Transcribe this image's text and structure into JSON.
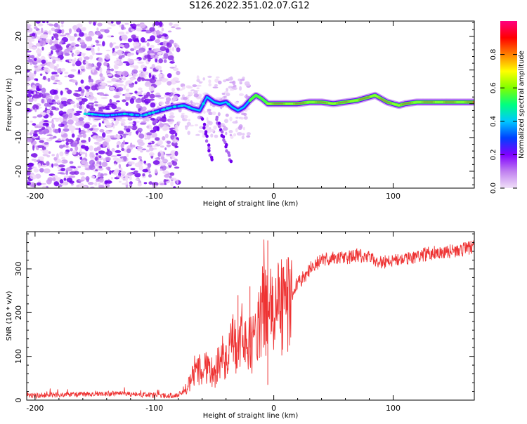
{
  "page": {
    "title": "S126.2022.351.02.07.G12"
  },
  "chart_data": [
    {
      "type": "heatmap",
      "title": "S126.2022.351.02.07.G12",
      "xlabel": "Height of straight line (km)",
      "ylabel": "Frequency (Hz)",
      "xlim": [
        -207,
        168
      ],
      "ylim": [
        -25,
        24.5
      ],
      "xticks": [
        -200,
        -100,
        0,
        100
      ],
      "yticks": [
        -20,
        -10,
        0,
        10,
        20
      ],
      "colorbar": {
        "label": "Normalized spectral amplitude",
        "range": [
          0,
          1
        ],
        "ticks": [
          0.0,
          0.2,
          0.4,
          0.6,
          0.8
        ],
        "colors": [
          "#f0e0f8",
          "#c080f0",
          "#8000ff",
          "#0040ff",
          "#00c8ff",
          "#00ff80",
          "#80ff00",
          "#ffff00",
          "#ff8000",
          "#ff0000",
          "#ff0080"
        ]
      },
      "ridge": {
        "x": [
          -155,
          -140,
          -125,
          -110,
          -95,
          -85,
          -75,
          -68,
          -62,
          -56,
          -50,
          -45,
          -40,
          -35,
          -30,
          -25,
          -20,
          -15,
          -10,
          -5,
          0,
          10,
          20,
          30,
          40,
          50,
          60,
          70,
          80,
          85,
          90,
          95,
          100,
          105,
          110,
          120,
          130,
          140,
          150,
          160,
          168
        ],
        "y": [
          -3,
          -3.5,
          -3,
          -3.5,
          -2,
          -1,
          -0.5,
          -1.5,
          -2,
          2,
          0.5,
          0,
          0.5,
          -1,
          -2,
          -1,
          1,
          2.5,
          1.5,
          0,
          0,
          0,
          0,
          0.5,
          0.5,
          0,
          0.5,
          1,
          2,
          2.5,
          1.5,
          0.5,
          0,
          -0.5,
          0,
          0.5,
          0.5,
          0.5,
          0.5,
          0.5,
          0.5
        ]
      }
    },
    {
      "type": "line",
      "xlabel": "Height of straight line (km)",
      "ylabel": "SNR (10 * v/v)",
      "xlim": [
        -207,
        168
      ],
      "ylim": [
        0,
        385
      ],
      "xticks": [
        -200,
        -100,
        0,
        100
      ],
      "yticks": [
        0,
        100,
        200,
        300
      ],
      "color": "#ee3333",
      "x": [
        -207,
        -180,
        -150,
        -130,
        -110,
        -90,
        -80,
        -75,
        -70,
        -65,
        -60,
        -55,
        -50,
        -45,
        -40,
        -35,
        -30,
        -25,
        -20,
        -15,
        -10,
        -8,
        -5,
        0,
        5,
        10,
        15,
        20,
        25,
        30,
        40,
        50,
        60,
        70,
        80,
        90,
        100,
        110,
        120,
        130,
        140,
        150,
        160,
        168
      ],
      "y": [
        10,
        12,
        14,
        15,
        12,
        10,
        12,
        20,
        40,
        80,
        60,
        90,
        50,
        110,
        80,
        130,
        110,
        160,
        120,
        150,
        180,
        250,
        190,
        200,
        220,
        210,
        240,
        270,
        280,
        300,
        320,
        325,
        325,
        330,
        325,
        315,
        320,
        320,
        330,
        335,
        340,
        340,
        345,
        350
      ]
    }
  ]
}
